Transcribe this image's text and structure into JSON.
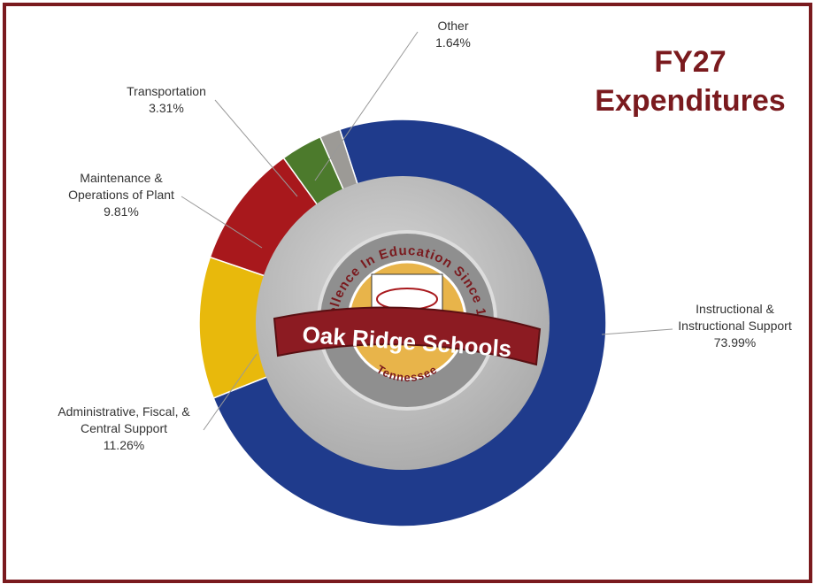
{
  "chart_data": {
    "type": "donut",
    "title": "FY27 Expenditures",
    "categories": [
      "Instructional & Instructional Support",
      "Administrative, Fiscal, & Central Support",
      "Maintenance & Operations of Plant",
      "Transportation",
      "Other"
    ],
    "values": [
      73.99,
      11.26,
      9.81,
      3.31,
      1.64
    ],
    "value_labels": [
      "73.99%",
      "11.26%",
      "9.81%",
      "3.31%",
      "1.64%"
    ],
    "colors": [
      "#1f3b8c",
      "#e8b90c",
      "#a8181c",
      "#4c7a2c",
      "#9c9a96"
    ]
  },
  "logo": {
    "arc_text": "Excellence In Education Since 1943",
    "name": "Oak Ridge Schools",
    "place": "Tennessee"
  }
}
